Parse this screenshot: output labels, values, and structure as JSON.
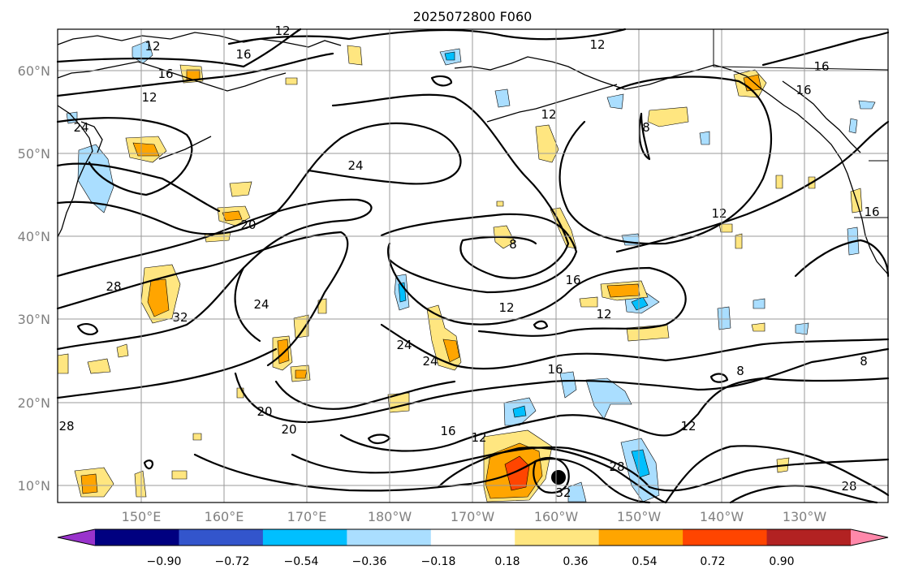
{
  "title": "2025072800 F060",
  "map": {
    "lon_labels": [
      "150°E",
      "160°E",
      "170°E",
      "180°W",
      "170°W",
      "160°W",
      "150°W",
      "140°W",
      "130°W"
    ],
    "lat_labels": [
      "60°N",
      "50°N",
      "40°N",
      "30°N",
      "20°N",
      "10°N"
    ],
    "contour_labels": [
      "12",
      "16",
      "16",
      "12",
      "12",
      "24",
      "16",
      "12",
      "16",
      "12",
      "8",
      "24",
      "20",
      "28",
      "32",
      "24",
      "8",
      "16",
      "12",
      "12",
      "24",
      "24",
      "16",
      "28",
      "20",
      "20",
      "16",
      "12",
      "12",
      "28",
      "28",
      "32",
      "16",
      "8",
      "8",
      "12"
    ],
    "center_marker": "low-center-dot"
  },
  "colorbar": {
    "ticks": [
      "−0.90",
      "−0.72",
      "−0.54",
      "−0.36",
      "−0.18",
      "0.18",
      "0.36",
      "0.54",
      "0.72",
      "0.90"
    ],
    "colors": [
      "#9933cc",
      "#000080",
      "#3355cc",
      "#00bfff",
      "#aadeff",
      "#ffffff",
      "#ffe680",
      "#ffa500",
      "#ff4500",
      "#b22222",
      "#ff88aa"
    ],
    "extend": "both"
  }
}
